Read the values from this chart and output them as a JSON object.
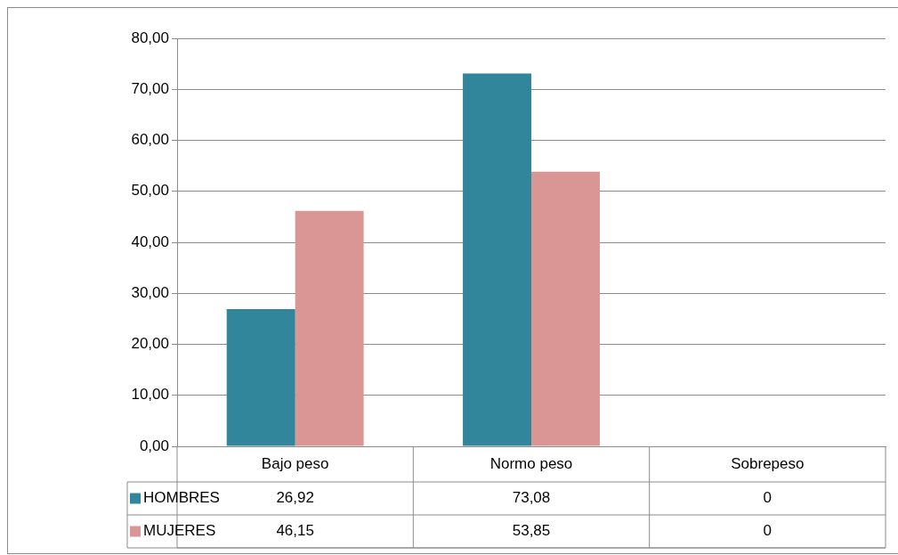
{
  "chart_data": {
    "type": "bar",
    "categories": [
      "Bajo peso",
      "Normo peso",
      "Sobrepeso"
    ],
    "series": [
      {
        "name": "HOMBRES",
        "color": "#31869b",
        "values": [
          26.92,
          73.08,
          0
        ],
        "value_labels": [
          "26,92",
          "73,08",
          "0"
        ]
      },
      {
        "name": "MUJERES",
        "color": "#d99694",
        "values": [
          46.15,
          53.85,
          0
        ],
        "value_labels": [
          "46,15",
          "53,85",
          "0"
        ]
      }
    ],
    "ylim": [
      0,
      80
    ],
    "yticks": [
      {
        "value": 0,
        "label": "0,00"
      },
      {
        "value": 10,
        "label": "10,00"
      },
      {
        "value": 20,
        "label": "20,00"
      },
      {
        "value": 30,
        "label": "30,00"
      },
      {
        "value": 40,
        "label": "40,00"
      },
      {
        "value": 50,
        "label": "50,00"
      },
      {
        "value": 60,
        "label": "60,00"
      },
      {
        "value": 70,
        "label": "70,00"
      },
      {
        "value": 80,
        "label": "80,00"
      }
    ],
    "grid": "y",
    "legend": "bottom left"
  }
}
